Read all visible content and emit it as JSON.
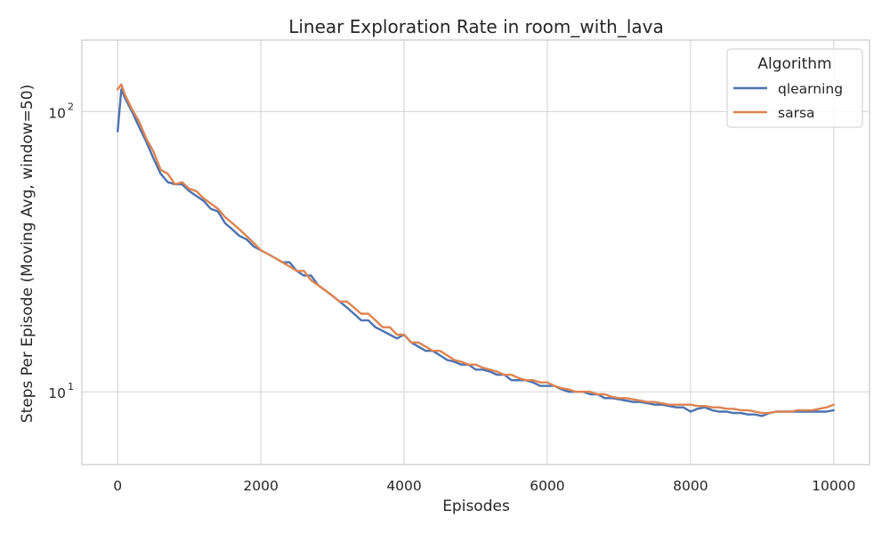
{
  "chart_data": {
    "type": "line",
    "title": "Linear Exploration Rate in room_with_lava",
    "xlabel": "Episodes",
    "ylabel": "Steps Per Episode (Moving Avg, window=50)",
    "xlim": [
      -500,
      10500
    ],
    "ylim": [
      5.5,
      180
    ],
    "y_scale": "log",
    "x_ticks": [
      0,
      2000,
      4000,
      6000,
      8000,
      10000
    ],
    "x_tick_labels": [
      "0",
      "2000",
      "4000",
      "6000",
      "8000",
      "10000"
    ],
    "y_ticks": [
      {
        "value": 10,
        "base": "10",
        "exp": "1"
      },
      {
        "value": 100,
        "base": "10",
        "exp": "2"
      }
    ],
    "grid": true,
    "legend": {
      "title": "Algorithm",
      "placement": "top-right"
    },
    "series": [
      {
        "name": "qlearning",
        "color": "#4c72b0",
        "x": [
          0,
          50,
          100,
          200,
          300,
          400,
          500,
          600,
          700,
          800,
          900,
          1000,
          1100,
          1200,
          1300,
          1400,
          1500,
          1600,
          1700,
          1800,
          1900,
          2000,
          2100,
          2200,
          2300,
          2400,
          2500,
          2600,
          2700,
          2800,
          2900,
          3000,
          3100,
          3200,
          3300,
          3400,
          3500,
          3600,
          3700,
          3800,
          3900,
          4000,
          4100,
          4200,
          4300,
          4400,
          4500,
          4600,
          4700,
          4800,
          4900,
          5000,
          5100,
          5200,
          5300,
          5400,
          5500,
          5600,
          5700,
          5800,
          5900,
          6000,
          6100,
          6200,
          6300,
          6400,
          6500,
          6600,
          6700,
          6800,
          6900,
          7000,
          7100,
          7200,
          7300,
          7400,
          7500,
          7600,
          7700,
          7800,
          7900,
          8000,
          8100,
          8200,
          8300,
          8400,
          8500,
          8600,
          8700,
          8800,
          8900,
          9000,
          9100,
          9200,
          9300,
          9400,
          9500,
          9600,
          9700,
          9800,
          9900,
          10000
        ],
        "y": [
          85,
          120,
          112,
          100,
          88,
          78,
          68,
          60,
          56,
          55,
          55,
          52,
          50,
          48,
          45,
          44,
          40,
          38,
          36,
          35,
          33,
          32,
          31,
          30,
          29,
          29,
          27,
          26,
          26,
          24,
          23,
          22,
          21,
          20,
          19,
          18,
          18,
          17,
          16.5,
          16,
          15.5,
          16,
          15,
          14.5,
          14,
          14,
          13.5,
          13,
          12.8,
          12.5,
          12.5,
          12,
          12,
          11.8,
          11.5,
          11.5,
          11,
          11,
          11,
          10.8,
          10.5,
          10.5,
          10.5,
          10.2,
          10,
          10,
          10,
          9.8,
          9.8,
          9.5,
          9.5,
          9.4,
          9.3,
          9.2,
          9.2,
          9.1,
          9,
          9,
          8.9,
          8.8,
          8.8,
          8.5,
          8.7,
          8.8,
          8.6,
          8.5,
          8.5,
          8.4,
          8.4,
          8.3,
          8.3,
          8.2,
          8.4,
          8.5,
          8.5,
          8.5,
          8.5,
          8.5,
          8.5,
          8.5,
          8.5,
          8.6
        ]
      },
      {
        "name": "sarsa",
        "color": "#dd8452",
        "x": [
          0,
          50,
          100,
          200,
          300,
          400,
          500,
          600,
          700,
          800,
          900,
          1000,
          1100,
          1200,
          1300,
          1400,
          1500,
          1600,
          1700,
          1800,
          1900,
          2000,
          2100,
          2200,
          2300,
          2400,
          2500,
          2600,
          2700,
          2800,
          2900,
          3000,
          3100,
          3200,
          3300,
          3400,
          3500,
          3600,
          3700,
          3800,
          3900,
          4000,
          4100,
          4200,
          4300,
          4400,
          4500,
          4600,
          4700,
          4800,
          4900,
          5000,
          5100,
          5200,
          5300,
          5400,
          5500,
          5600,
          5700,
          5800,
          5900,
          6000,
          6100,
          6200,
          6300,
          6400,
          6500,
          6600,
          6700,
          6800,
          6900,
          7000,
          7100,
          7200,
          7300,
          7400,
          7500,
          7600,
          7700,
          7800,
          7900,
          8000,
          8100,
          8200,
          8300,
          8400,
          8500,
          8600,
          8700,
          8800,
          8900,
          9000,
          9100,
          9200,
          9300,
          9400,
          9500,
          9600,
          9700,
          9800,
          9900,
          10000
        ],
        "y": [
          120,
          125,
          115,
          102,
          92,
          80,
          72,
          62,
          60,
          55,
          56,
          53,
          52,
          49,
          47,
          45,
          42,
          40,
          38,
          36,
          34,
          32,
          31,
          30,
          29,
          28,
          27,
          27,
          25,
          24,
          23,
          22,
          21,
          21,
          20,
          19,
          19,
          18,
          17,
          17,
          16,
          16,
          15,
          15,
          14.5,
          14,
          14,
          13.5,
          13,
          12.8,
          12.5,
          12.5,
          12.2,
          12,
          11.8,
          11.5,
          11.5,
          11.2,
          11,
          11,
          10.8,
          10.8,
          10.5,
          10.3,
          10.2,
          10,
          10,
          10,
          9.8,
          9.8,
          9.6,
          9.5,
          9.5,
          9.4,
          9.3,
          9.2,
          9.2,
          9.1,
          9,
          9,
          9,
          9,
          8.9,
          8.9,
          8.8,
          8.8,
          8.7,
          8.7,
          8.6,
          8.6,
          8.5,
          8.4,
          8.4,
          8.5,
          8.5,
          8.5,
          8.6,
          8.6,
          8.6,
          8.7,
          8.8,
          9
        ]
      }
    ]
  }
}
